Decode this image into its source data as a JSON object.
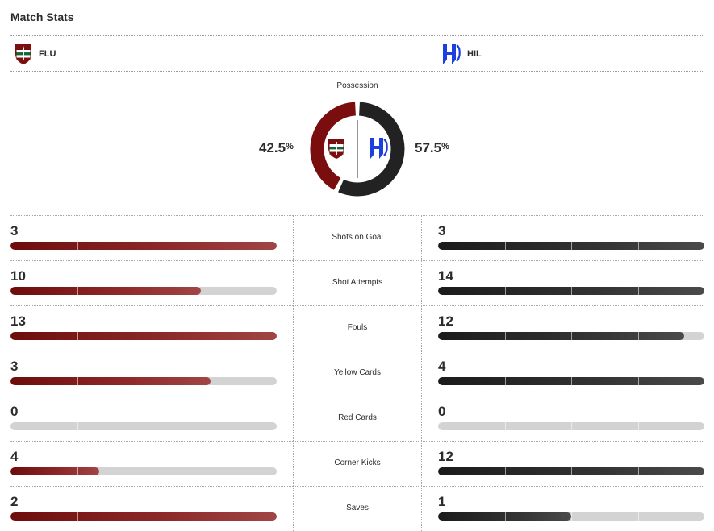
{
  "header": {
    "title": "Match Stats"
  },
  "teams": {
    "home": {
      "abbr": "FLU",
      "logo_icon": "fluminense-crest-icon",
      "color": "#7a0f0f"
    },
    "away": {
      "abbr": "HIL",
      "logo_icon": "al-hilal-crest-icon",
      "color": "#1d3fe0"
    }
  },
  "possession": {
    "label": "Possession",
    "home_value": "42.5",
    "away_value": "57.5",
    "unit": "%",
    "home_fraction": 0.425,
    "away_fraction": 0.575,
    "home_color": "#7a0d0d",
    "away_color": "#222222"
  },
  "stats": [
    {
      "label": "Shots on Goal",
      "home": "3",
      "away": "3",
      "home_fraction": 1.0,
      "away_fraction": 1.0
    },
    {
      "label": "Shot Attempts",
      "home": "10",
      "away": "14",
      "home_fraction": 0.714,
      "away_fraction": 1.0
    },
    {
      "label": "Fouls",
      "home": "13",
      "away": "12",
      "home_fraction": 1.0,
      "away_fraction": 0.923
    },
    {
      "label": "Yellow Cards",
      "home": "3",
      "away": "4",
      "home_fraction": 0.75,
      "away_fraction": 1.0
    },
    {
      "label": "Red Cards",
      "home": "0",
      "away": "0",
      "home_fraction": 0.0,
      "away_fraction": 0.0
    },
    {
      "label": "Corner Kicks",
      "home": "4",
      "away": "12",
      "home_fraction": 0.333,
      "away_fraction": 1.0
    },
    {
      "label": "Saves",
      "home": "2",
      "away": "1",
      "home_fraction": 1.0,
      "away_fraction": 0.5
    }
  ]
}
